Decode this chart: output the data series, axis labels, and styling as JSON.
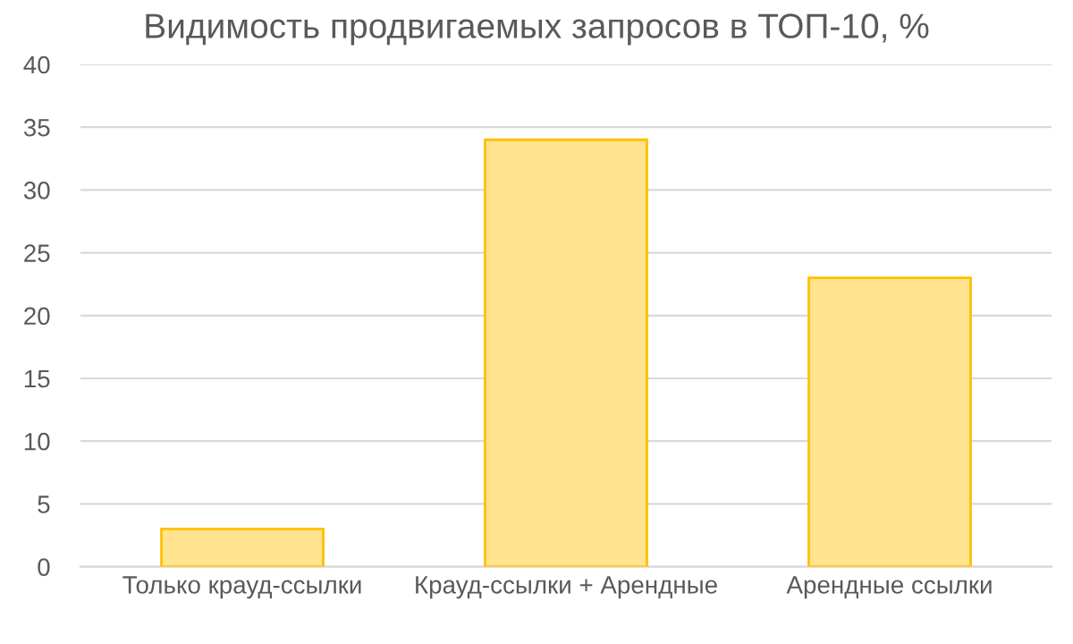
{
  "chart_data": {
    "type": "bar",
    "title": "Видимость продвигаемых запросов в ТОП-10, %",
    "categories": [
      "Только крауд-ссылки",
      "Крауд-ссылки + Арендные",
      "Арендные ссылки"
    ],
    "values": [
      3,
      34,
      23
    ],
    "color": "#ffe38f",
    "ylim": [
      0,
      40
    ],
    "yticks": [
      0,
      5,
      10,
      15,
      20,
      25,
      30,
      35,
      40
    ],
    "grid": "y"
  }
}
